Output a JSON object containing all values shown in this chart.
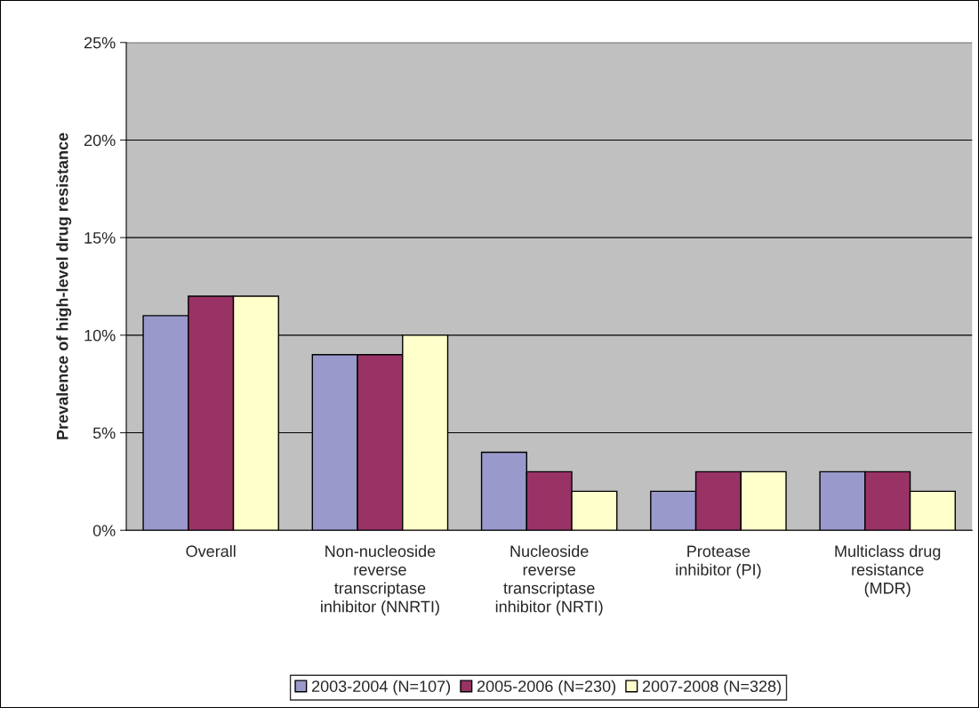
{
  "chart_data": {
    "type": "bar",
    "ylabel": "Prevalence of high-level drug resistance",
    "categories": [
      "Overall",
      "Non-nucleoside\nreverse\ntranscriptase\ninhibitor (NNRTI)",
      "Nucleoside\nreverse\ntranscriptase\ninhibitor (NRTI)",
      "Protease\ninhibitor (PI)",
      "Multiclass drug\nresistance\n(MDR)"
    ],
    "series": [
      {
        "name": "2003-2004 (N=107)",
        "color": "#9999cc",
        "values": [
          11,
          9,
          4,
          2,
          3
        ]
      },
      {
        "name": "2005-2006 (N=230)",
        "color": "#993366",
        "values": [
          12,
          9,
          3,
          3,
          3
        ]
      },
      {
        "name": "2007-2008 (N=328)",
        "color": "#ffffcc",
        "values": [
          12,
          10,
          2,
          3,
          2
        ]
      }
    ],
    "ylim": [
      0,
      25
    ],
    "yticks": [
      {
        "value": 0,
        "label": "0%"
      },
      {
        "value": 5,
        "label": "5%"
      },
      {
        "value": 10,
        "label": "10%"
      },
      {
        "value": 15,
        "label": "15%"
      },
      {
        "value": 20,
        "label": "20%"
      },
      {
        "value": 25,
        "label": "25%"
      }
    ],
    "grid": "y",
    "legend": "bottom"
  }
}
